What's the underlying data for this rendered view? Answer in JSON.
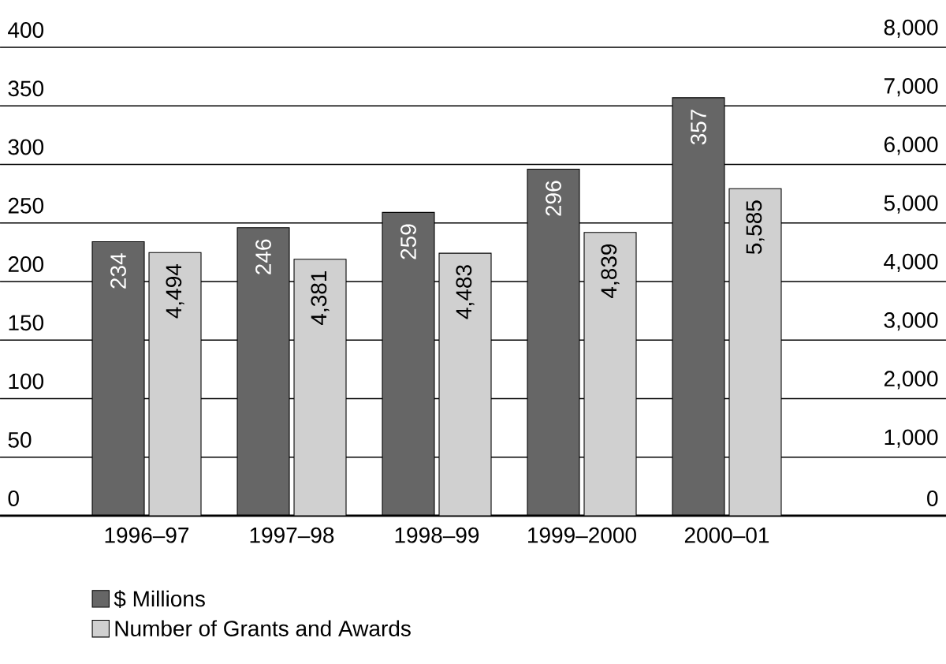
{
  "chart_data": {
    "type": "bar",
    "categories": [
      "1996–97",
      "1997–98",
      "1998–99",
      "1999–2000",
      "2000–01"
    ],
    "series": [
      {
        "name": "$ Millions",
        "color": "#666666",
        "values": [
          234,
          246,
          259,
          296,
          357
        ],
        "value_labels": [
          "234",
          "246",
          "259",
          "296",
          "357"
        ]
      },
      {
        "name": "Number of Grants and Awards",
        "color": "#d0d0d0",
        "axis": "y2",
        "values": [
          4494,
          4381,
          4483,
          4839,
          5585
        ],
        "value_labels": [
          "4,494",
          "4,381",
          "4,483",
          "4,839",
          "5,585"
        ]
      }
    ],
    "ylim": [
      0,
      400
    ],
    "yticks": [
      0,
      50,
      100,
      150,
      200,
      250,
      300,
      350,
      400
    ],
    "y2lim": [
      0,
      8000
    ],
    "y2ticks": [
      0,
      {
        "value": 1000,
        "label": "1,000"
      },
      {
        "value": 2000,
        "label": "2,000"
      },
      {
        "value": 3000,
        "label": "3,000"
      },
      {
        "value": 4000,
        "label": "4,000"
      },
      {
        "value": 5000,
        "label": "5,000"
      },
      {
        "value": 6000,
        "label": "6,000"
      },
      {
        "value": 7000,
        "label": "7,000"
      },
      {
        "value": 8000,
        "label": "8,000"
      }
    ],
    "grid": "y",
    "legend": "bottom left"
  }
}
